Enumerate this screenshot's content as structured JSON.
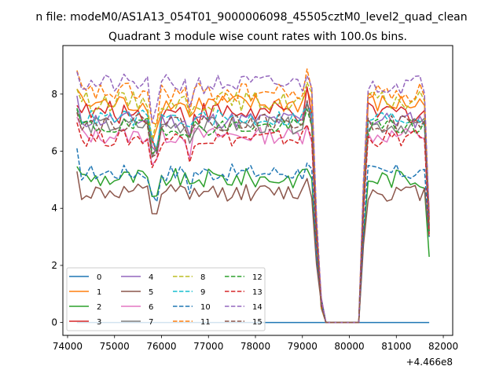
{
  "chart_data": {
    "type": "line",
    "suptitle": "n file: modeM0/AS1A13_054T01_9000006098_45505cztM0_level2_quad_clean",
    "title": "Quadrant 3 module wise count rates with 100.0s bins.",
    "xlabel": "",
    "ylabel": "",
    "x_offset_label": "+4.466e8",
    "xlim": [
      73900,
      82200
    ],
    "ylim": [
      -0.45,
      9.7
    ],
    "xticks": [
      74000,
      75000,
      76000,
      77000,
      78000,
      79000,
      80000,
      81000,
      82000
    ],
    "xtick_labels": [
      "74000",
      "75000",
      "76000",
      "77000",
      "78000",
      "79000",
      "80000",
      "81000",
      "82000"
    ],
    "yticks": [
      0,
      2,
      4,
      6,
      8
    ],
    "ytick_labels": [
      "0",
      "2",
      "4",
      "6",
      "8"
    ],
    "grid": false,
    "legend_position": "lower-left",
    "gap": [
      79450,
      80200
    ],
    "x_start": 74200,
    "x_end": 81700,
    "bin": 100,
    "series": [
      {
        "name": "0",
        "color": "#1f77b4",
        "dash": "solid",
        "level": 0,
        "noise": 0,
        "dip": 0,
        "end": 0
      },
      {
        "name": "1",
        "color": "#ff7f0e",
        "dash": "solid",
        "level": 7.65,
        "noise": 0.35,
        "dip": 1.0,
        "end": 3.6
      },
      {
        "name": "2",
        "color": "#2ca02c",
        "dash": "solid",
        "level": 5.05,
        "noise": 0.35,
        "dip": 0.9,
        "end": 2.3
      },
      {
        "name": "3",
        "color": "#d62728",
        "dash": "solid",
        "level": 7.35,
        "noise": 0.4,
        "dip": 1.1,
        "end": 3.8
      },
      {
        "name": "4",
        "color": "#9467bd",
        "dash": "solid",
        "level": 7.1,
        "noise": 0.3,
        "dip": 1.0,
        "end": 3.4
      },
      {
        "name": "5",
        "color": "#8c564b",
        "dash": "solid",
        "level": 4.55,
        "noise": 0.3,
        "dip": 0.7,
        "end": 3.0
      },
      {
        "name": "6",
        "color": "#e377c2",
        "dash": "solid",
        "level": 6.55,
        "noise": 0.3,
        "dip": 0.9,
        "end": 3.3
      },
      {
        "name": "7",
        "color": "#7f7f7f",
        "dash": "solid",
        "level": 6.9,
        "noise": 0.3,
        "dip": 0.9,
        "end": 3.2
      },
      {
        "name": "8",
        "color": "#bcbd22",
        "dash": "dashed",
        "level": 7.75,
        "noise": 0.35,
        "dip": 1.0,
        "end": 3.5
      },
      {
        "name": "9",
        "color": "#17becf",
        "dash": "dashed",
        "level": 7.15,
        "noise": 0.3,
        "dip": 0.9,
        "end": 3.3
      },
      {
        "name": "10",
        "color": "#1f77b4",
        "dash": "dashed",
        "level": 5.25,
        "noise": 0.3,
        "dip": 0.9,
        "end": 3.0
      },
      {
        "name": "11",
        "color": "#ff7f0e",
        "dash": "dashed",
        "level": 8.05,
        "noise": 0.35,
        "dip": 1.1,
        "end": 3.6
      },
      {
        "name": "12",
        "color": "#2ca02c",
        "dash": "dashed",
        "level": 6.85,
        "noise": 0.3,
        "dip": 0.9,
        "end": 3.2
      },
      {
        "name": "13",
        "color": "#d62728",
        "dash": "dashed",
        "level": 6.45,
        "noise": 0.3,
        "dip": 0.9,
        "end": 3.1
      },
      {
        "name": "14",
        "color": "#9467bd",
        "dash": "dashed",
        "level": 8.35,
        "noise": 0.35,
        "dip": 1.1,
        "end": 3.7
      },
      {
        "name": "15",
        "color": "#8c564b",
        "dash": "dashed",
        "level": 7.0,
        "noise": 0.3,
        "dip": 0.9,
        "end": 3.3
      }
    ]
  }
}
